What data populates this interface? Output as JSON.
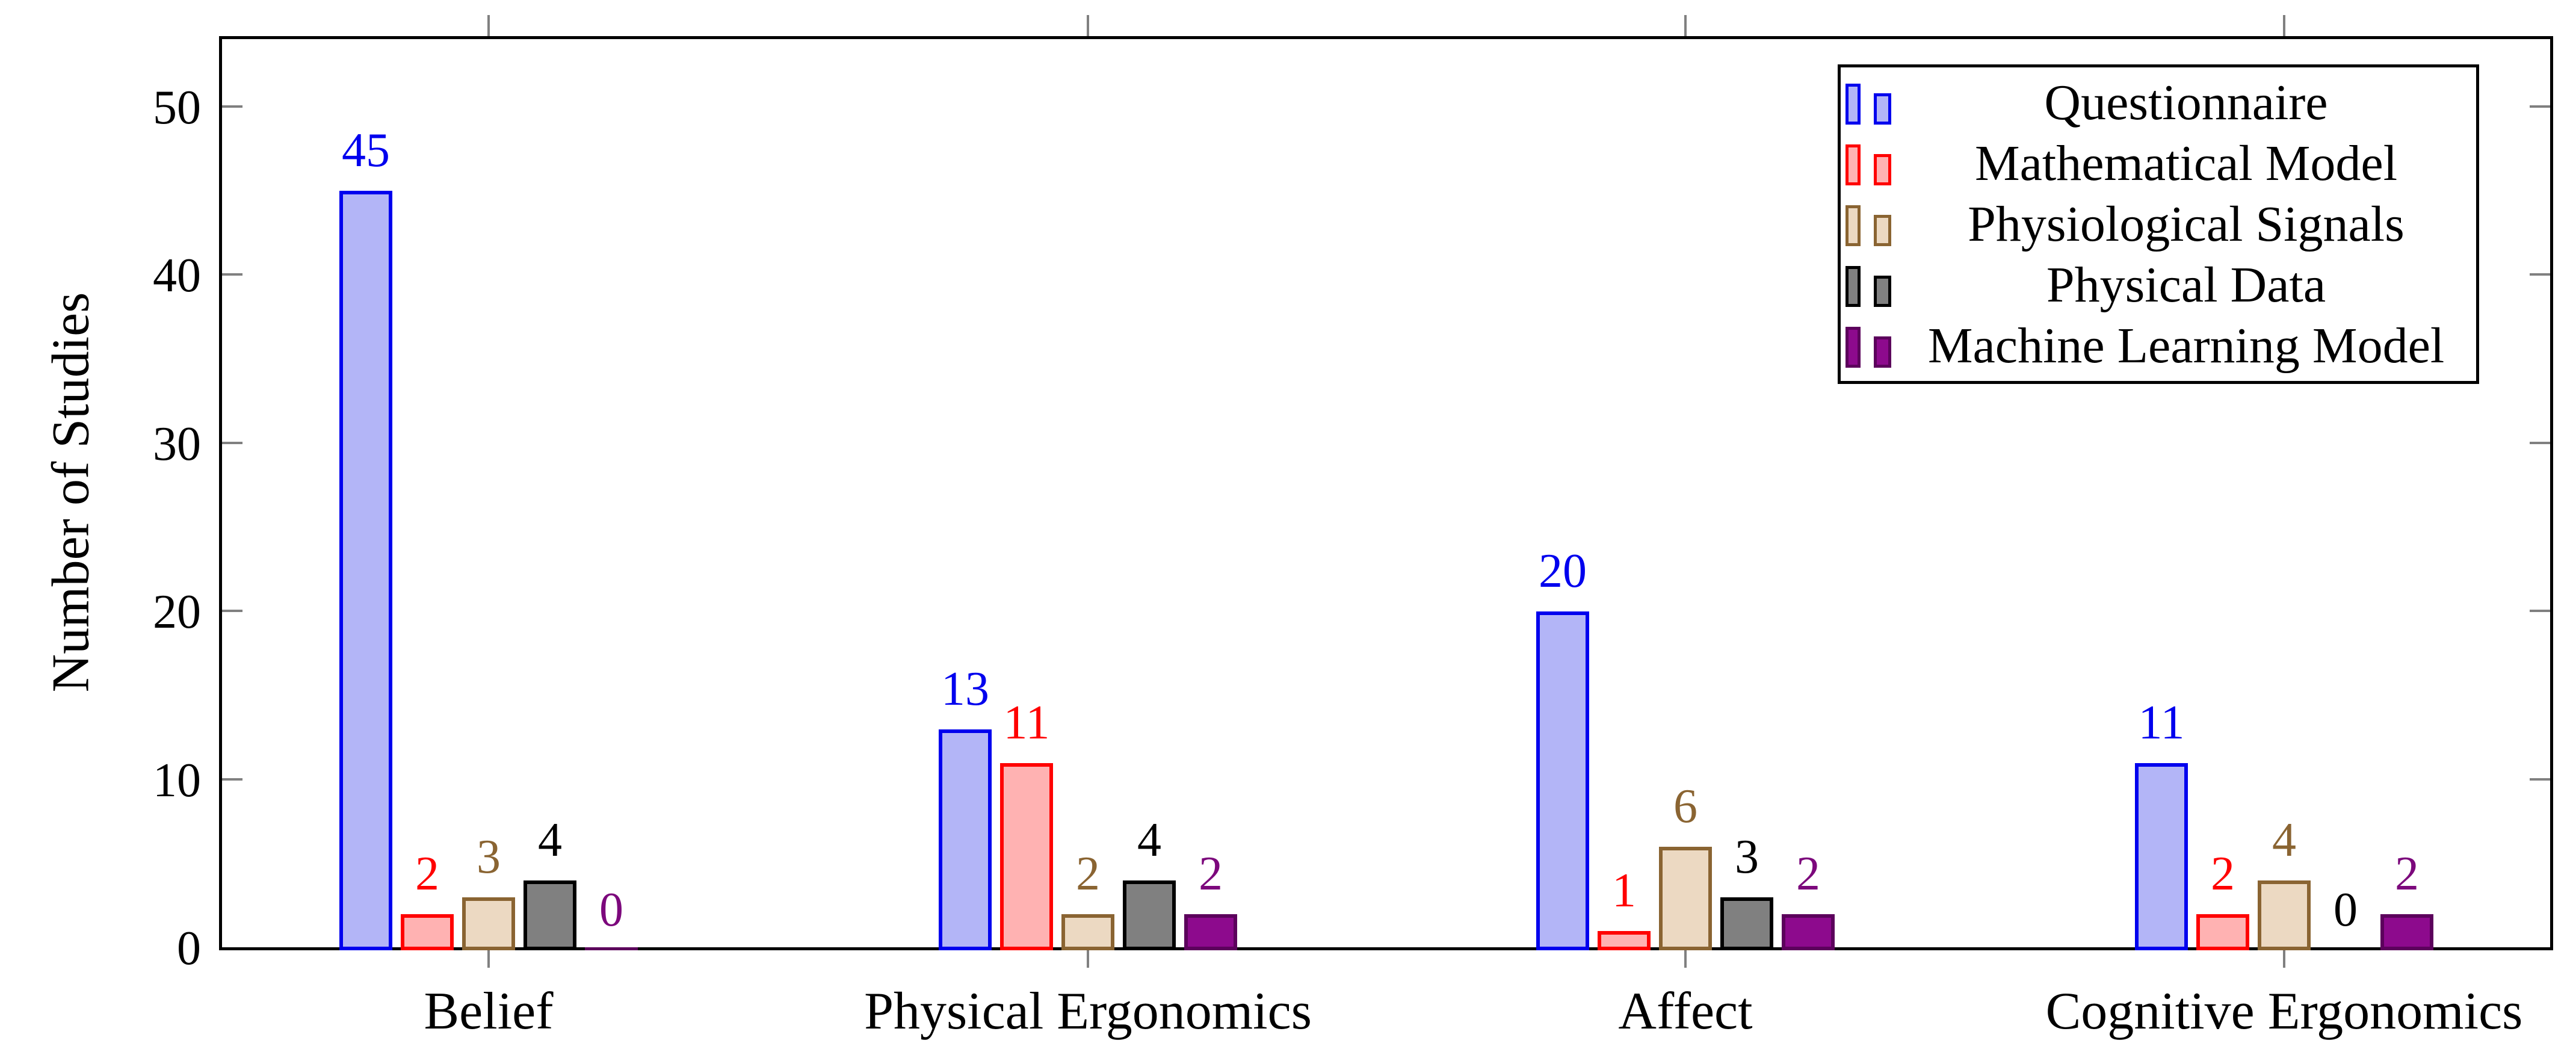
{
  "chart_data": {
    "type": "bar",
    "title": "",
    "ylabel": "Number of Studies",
    "xlabel": "",
    "categories": [
      "Belief",
      "Physical Ergonomics",
      "Affect",
      "Cognitive Ergonomics"
    ],
    "series": [
      {
        "name": "Questionnaire",
        "fill": "#b3b5f7",
        "stroke": "#0000ee",
        "label_color": "#0000ee",
        "values": [
          45,
          13,
          20,
          11
        ]
      },
      {
        "name": "Mathematical Model",
        "fill": "#ffb2b2",
        "stroke": "#ff0000",
        "label_color": "#ff0000",
        "values": [
          2,
          11,
          1,
          2
        ]
      },
      {
        "name": "Physiological Signals",
        "fill": "#ecd9c2",
        "stroke": "#8a6432",
        "label_color": "#8a6432",
        "values": [
          3,
          2,
          6,
          4
        ]
      },
      {
        "name": "Physical Data",
        "fill": "#808080",
        "stroke": "#000000",
        "label_color": "#000000",
        "values": [
          4,
          4,
          3,
          0
        ]
      },
      {
        "name": "Machine Learning Model",
        "fill": "#8d0a8d",
        "stroke": "#5c025c",
        "label_color": "#7c087c",
        "values": [
          0,
          2,
          2,
          2
        ]
      }
    ],
    "ylim": [
      0,
      54
    ],
    "yticks": [
      0,
      10,
      20,
      30,
      40,
      50
    ],
    "yticks_mirrored_right": true,
    "xticks_mirrored_top": true,
    "grid": false,
    "value_labels": true,
    "legend_position": "top-right",
    "axis_color": "#000000",
    "tick_color": "#808080",
    "background_color": "#ffffff"
  }
}
